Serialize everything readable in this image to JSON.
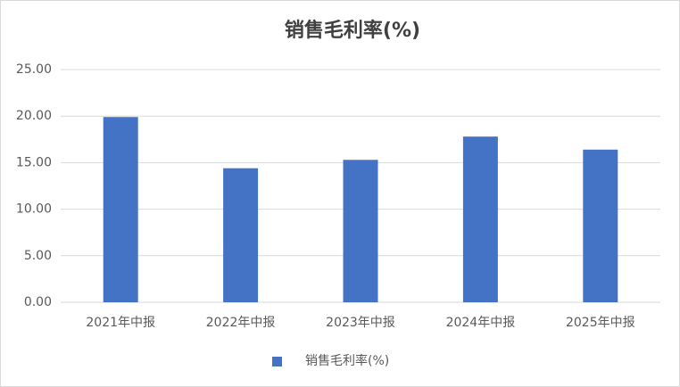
{
  "chart_data": {
    "type": "bar",
    "title": "销售毛利率(%)",
    "categories": [
      "2021年中报",
      "2022年中报",
      "2023年中报",
      "2024年中报",
      "2025年中报"
    ],
    "series": [
      {
        "name": "销售毛利率(%)",
        "color": "#4472c4",
        "values": [
          19.9,
          14.4,
          15.3,
          17.8,
          16.4
        ]
      }
    ],
    "ylim": [
      0,
      25
    ],
    "yticks": [
      {
        "value": 0,
        "label": "0.00"
      },
      {
        "value": 5,
        "label": "5.00"
      },
      {
        "value": 10,
        "label": "10.00"
      },
      {
        "value": 15,
        "label": "15.00"
      },
      {
        "value": 20,
        "label": "20.00"
      },
      {
        "value": 25,
        "label": "25.00"
      }
    ],
    "grid": true,
    "legend": "bottom"
  }
}
